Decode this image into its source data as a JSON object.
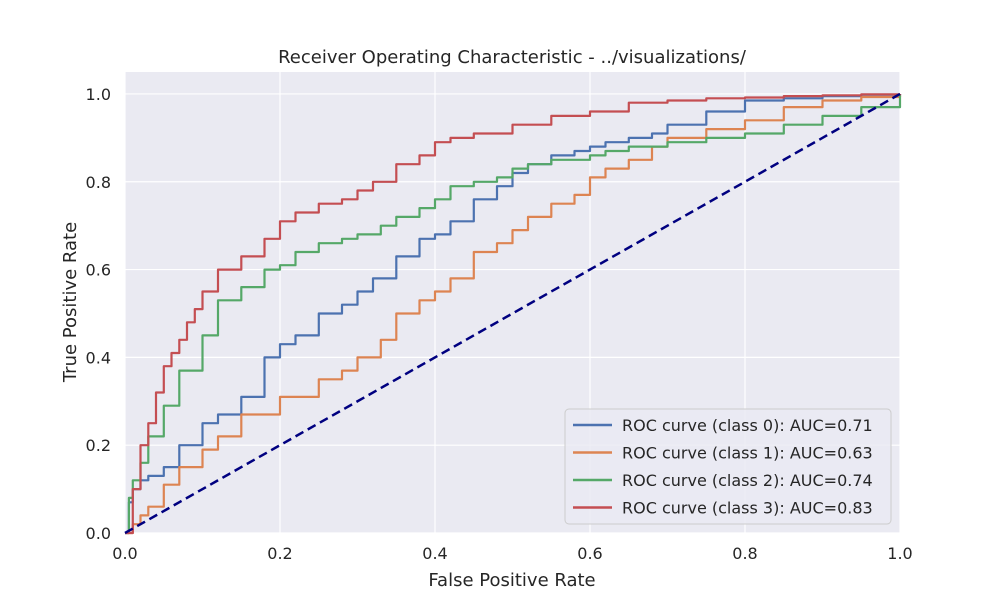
{
  "chart_data": {
    "type": "line",
    "title": "Receiver Operating Characteristic - ../visualizations/",
    "xlabel": "False Positive Rate",
    "ylabel": "True Positive Rate",
    "xlim": [
      0.0,
      1.0
    ],
    "ylim": [
      0.0,
      1.05
    ],
    "xticks": [
      "0.0",
      "0.2",
      "0.4",
      "0.6",
      "0.8",
      "1.0"
    ],
    "yticks": [
      "0.0",
      "0.2",
      "0.4",
      "0.6",
      "0.8",
      "1.0"
    ],
    "grid": true,
    "legend_position": "bottom-right",
    "background": "#eaeaf2",
    "series": [
      {
        "name": "ROC curve (class 0): AUC=0.71",
        "color": "#4c72b0",
        "x": [
          0.0,
          0.005,
          0.01,
          0.02,
          0.03,
          0.05,
          0.07,
          0.1,
          0.12,
          0.15,
          0.18,
          0.2,
          0.22,
          0.25,
          0.28,
          0.3,
          0.32,
          0.35,
          0.38,
          0.4,
          0.42,
          0.45,
          0.48,
          0.5,
          0.52,
          0.55,
          0.58,
          0.6,
          0.62,
          0.65,
          0.68,
          0.7,
          0.75,
          0.8,
          0.85,
          0.9,
          0.95,
          1.0
        ],
        "y": [
          0.0,
          0.07,
          0.1,
          0.12,
          0.13,
          0.15,
          0.2,
          0.25,
          0.27,
          0.31,
          0.4,
          0.43,
          0.45,
          0.5,
          0.52,
          0.55,
          0.58,
          0.63,
          0.67,
          0.68,
          0.71,
          0.76,
          0.79,
          0.82,
          0.84,
          0.86,
          0.87,
          0.88,
          0.89,
          0.9,
          0.91,
          0.93,
          0.96,
          0.985,
          0.99,
          0.995,
          0.998,
          1.0
        ]
      },
      {
        "name": "ROC curve (class 1): AUC=0.63",
        "color": "#dd8452",
        "x": [
          0.0,
          0.01,
          0.02,
          0.03,
          0.05,
          0.07,
          0.1,
          0.12,
          0.15,
          0.2,
          0.25,
          0.28,
          0.3,
          0.33,
          0.35,
          0.38,
          0.4,
          0.42,
          0.45,
          0.48,
          0.5,
          0.52,
          0.55,
          0.58,
          0.6,
          0.62,
          0.65,
          0.68,
          0.7,
          0.75,
          0.8,
          0.85,
          0.9,
          0.95,
          1.0
        ],
        "y": [
          0.0,
          0.02,
          0.04,
          0.06,
          0.11,
          0.15,
          0.19,
          0.22,
          0.27,
          0.31,
          0.35,
          0.37,
          0.4,
          0.44,
          0.5,
          0.53,
          0.55,
          0.58,
          0.64,
          0.66,
          0.69,
          0.72,
          0.75,
          0.77,
          0.81,
          0.83,
          0.85,
          0.88,
          0.9,
          0.92,
          0.94,
          0.97,
          0.985,
          0.993,
          1.0
        ]
      },
      {
        "name": "ROC curve (class 2): AUC=0.74",
        "color": "#55a868",
        "x": [
          0.0,
          0.005,
          0.01,
          0.02,
          0.03,
          0.05,
          0.07,
          0.1,
          0.12,
          0.15,
          0.18,
          0.2,
          0.22,
          0.25,
          0.28,
          0.3,
          0.33,
          0.35,
          0.38,
          0.4,
          0.42,
          0.45,
          0.48,
          0.5,
          0.52,
          0.55,
          0.58,
          0.6,
          0.62,
          0.65,
          0.7,
          0.75,
          0.8,
          0.85,
          0.9,
          0.95,
          1.0
        ],
        "y": [
          0.0,
          0.08,
          0.12,
          0.16,
          0.22,
          0.29,
          0.37,
          0.45,
          0.53,
          0.56,
          0.6,
          0.61,
          0.64,
          0.66,
          0.67,
          0.68,
          0.7,
          0.72,
          0.74,
          0.76,
          0.79,
          0.8,
          0.81,
          0.83,
          0.84,
          0.85,
          0.85,
          0.86,
          0.87,
          0.88,
          0.89,
          0.9,
          0.91,
          0.93,
          0.95,
          0.97,
          1.0
        ]
      },
      {
        "name": "ROC curve (class 3): AUC=0.83",
        "color": "#c44e52",
        "x": [
          0.0,
          0.01,
          0.02,
          0.03,
          0.04,
          0.05,
          0.06,
          0.07,
          0.08,
          0.09,
          0.1,
          0.12,
          0.15,
          0.18,
          0.2,
          0.22,
          0.25,
          0.28,
          0.3,
          0.32,
          0.35,
          0.38,
          0.4,
          0.42,
          0.45,
          0.5,
          0.55,
          0.6,
          0.65,
          0.7,
          0.75,
          0.8,
          0.85,
          0.9,
          0.95,
          1.0
        ],
        "y": [
          0.0,
          0.1,
          0.2,
          0.25,
          0.32,
          0.38,
          0.41,
          0.44,
          0.48,
          0.51,
          0.55,
          0.6,
          0.63,
          0.67,
          0.71,
          0.73,
          0.75,
          0.76,
          0.78,
          0.8,
          0.84,
          0.86,
          0.89,
          0.9,
          0.91,
          0.93,
          0.95,
          0.96,
          0.98,
          0.985,
          0.99,
          0.992,
          0.995,
          0.997,
          0.999,
          1.0
        ]
      }
    ],
    "reference_line": {
      "x": [
        0,
        1
      ],
      "y": [
        0,
        1
      ],
      "color": "#000080",
      "style": "dashed"
    }
  }
}
